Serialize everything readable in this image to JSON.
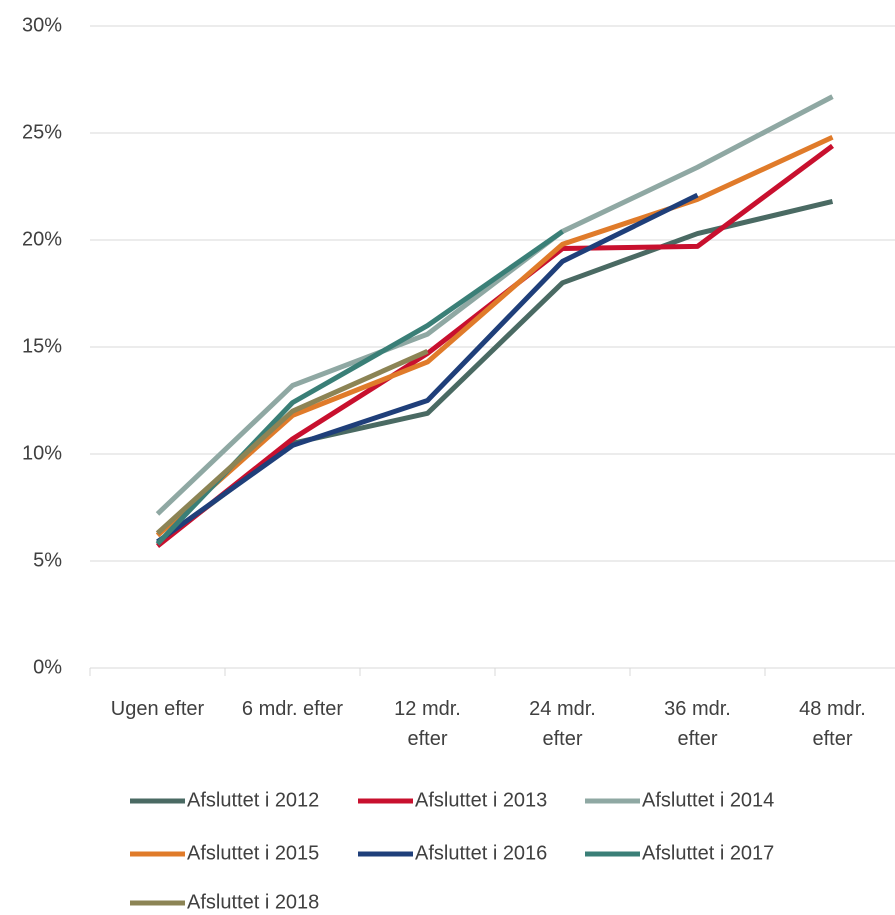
{
  "chart_data": {
    "type": "line",
    "categories": [
      "Ugen efter",
      "6 mdr. efter",
      "12 mdr. efter",
      "24 mdr. efter",
      "36 mdr. efter",
      "48 mdr. efter"
    ],
    "series": [
      {
        "name": "Afsluttet i 2012",
        "color": "#4a6a63",
        "values": [
          5.8,
          10.5,
          11.9,
          18.0,
          20.3,
          21.8
        ]
      },
      {
        "name": "Afsluttet i 2013",
        "color": "#c8102e",
        "values": [
          5.7,
          10.7,
          14.7,
          19.6,
          19.7,
          24.4
        ]
      },
      {
        "name": "Afsluttet i 2014",
        "color": "#8fa8a3",
        "values": [
          7.2,
          13.2,
          15.6,
          20.4,
          23.4,
          26.7
        ]
      },
      {
        "name": "Afsluttet i 2015",
        "color": "#e07b2a",
        "values": [
          6.2,
          11.8,
          14.3,
          19.8,
          21.9,
          24.8
        ]
      },
      {
        "name": "Afsluttet i 2016",
        "color": "#1f3f7a",
        "values": [
          5.9,
          10.4,
          12.5,
          19.0,
          22.1,
          null
        ]
      },
      {
        "name": "Afsluttet i 2017",
        "color": "#3a7f77",
        "values": [
          5.8,
          12.4,
          16.0,
          20.4,
          null,
          null
        ]
      },
      {
        "name": "Afsluttet i 2018",
        "color": "#8c8455",
        "values": [
          6.3,
          12.0,
          14.8,
          null,
          null,
          null
        ]
      }
    ],
    "ylim": [
      0,
      30
    ],
    "yticks": [
      {
        "value": 0,
        "label": "0%"
      },
      {
        "value": 5,
        "label": "5%"
      },
      {
        "value": 10,
        "label": "10%"
      },
      {
        "value": 15,
        "label": "15%"
      },
      {
        "value": 20,
        "label": "20%"
      },
      {
        "value": 25,
        "label": "25%"
      },
      {
        "value": 30,
        "label": "30%"
      }
    ],
    "grid": true,
    "legend": "bottom"
  }
}
